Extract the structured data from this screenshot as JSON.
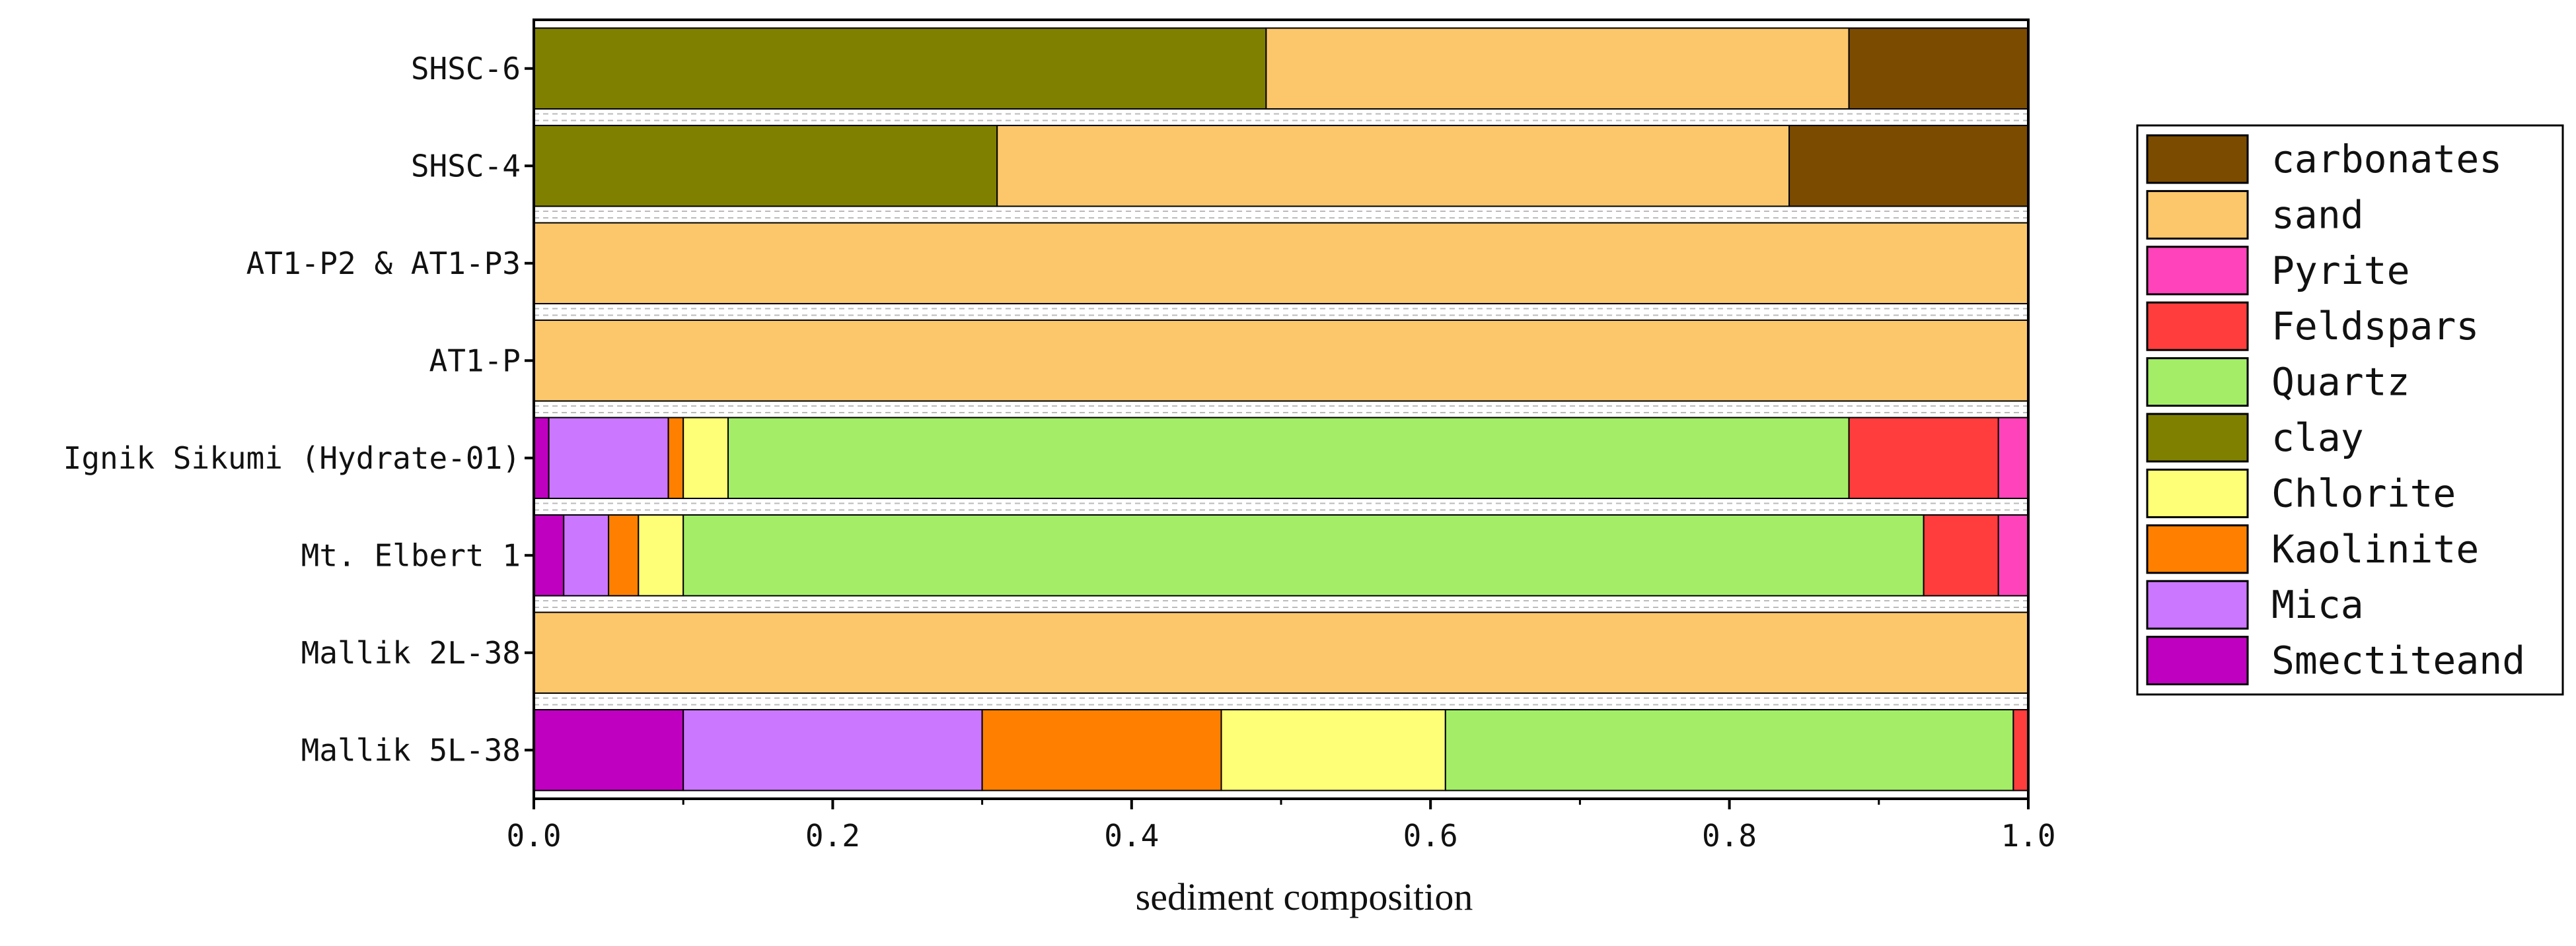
{
  "chart_data": {
    "type": "bar",
    "orientation": "horizontal",
    "stacked": true,
    "title": "",
    "xlabel": "sediment composition",
    "ylabel": "",
    "xlim": [
      0,
      1
    ],
    "xticks": [
      "0.0",
      "0.2",
      "0.4",
      "0.6",
      "0.8",
      "1.0"
    ],
    "grid": false,
    "legend_position": "right",
    "categories": [
      "SHSC-6",
      "SHSC-4",
      "AT1-P2 & AT1-P3",
      "AT1-P",
      "Ignik Sikumi (Hydrate-01)",
      "Mt. Elbert 1",
      "Mallik 2L-38",
      "Mallik 5L-38"
    ],
    "series": [
      {
        "name": "Smectiteand",
        "color": "#C000C0",
        "values": [
          0,
          0,
          0,
          0,
          0.01,
          0.02,
          0,
          0.1
        ]
      },
      {
        "name": "Mica",
        "color": "#CC77FF",
        "values": [
          0,
          0,
          0,
          0,
          0.08,
          0.03,
          0,
          0.2
        ]
      },
      {
        "name": "Kaolinite",
        "color": "#FF8000",
        "values": [
          0,
          0,
          0,
          0,
          0.01,
          0.02,
          0,
          0.16
        ]
      },
      {
        "name": "Chlorite",
        "color": "#FFFF77",
        "values": [
          0,
          0,
          0,
          0,
          0.03,
          0.03,
          0,
          0.15
        ]
      },
      {
        "name": "clay",
        "color": "#808000",
        "values": [
          0.49,
          0.31,
          0,
          0,
          0,
          0,
          0,
          0
        ]
      },
      {
        "name": "Quartz",
        "color": "#A3EE66",
        "values": [
          0,
          0,
          0,
          0,
          0.75,
          0.83,
          0,
          0.38
        ]
      },
      {
        "name": "Feldspars",
        "color": "#FF3D3D",
        "values": [
          0,
          0,
          0,
          0,
          0.1,
          0.05,
          0,
          0.01
        ]
      },
      {
        "name": "Pyrite",
        "color": "#FF44BB",
        "values": [
          0,
          0,
          0,
          0,
          0.02,
          0.02,
          0,
          0
        ]
      },
      {
        "name": "sand",
        "color": "#FCC76B",
        "values": [
          0.39,
          0.53,
          1.0,
          1.0,
          0,
          0,
          1.0,
          0
        ]
      },
      {
        "name": "carbonates",
        "color": "#7B4B00",
        "values": [
          0.12,
          0.16,
          0,
          0,
          0,
          0,
          0,
          0
        ]
      }
    ],
    "legend_order": [
      "carbonates",
      "sand",
      "Pyrite",
      "Feldspars",
      "Quartz",
      "clay",
      "Chlorite",
      "Kaolinite",
      "Mica",
      "Smectiteand"
    ]
  }
}
